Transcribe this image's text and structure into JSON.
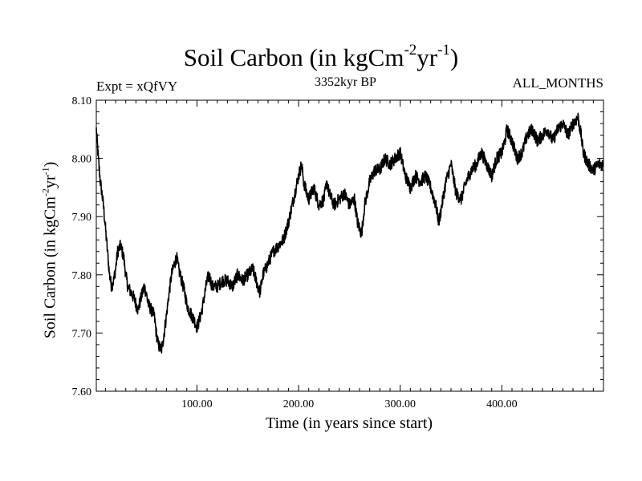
{
  "chart_data": {
    "type": "line",
    "title": {
      "main": "Soil Carbon (in kgCm",
      "sup1": "-2",
      "mid": "yr",
      "sup2": "-1",
      "end": ")"
    },
    "experiment": "Expt = xQfVY",
    "period": "3352kyr BP",
    "months": "ALL_MONTHS",
    "xlabel": "Time (in years since start)",
    "ylabel": {
      "main": "Soil Carbon (in kgCm",
      "sup1": "-2",
      "mid": "yr",
      "sup2": "-1",
      "end": ")"
    },
    "xlim": [
      1,
      500
    ],
    "ylim": [
      7.6,
      8.1
    ],
    "xticks": [
      100,
      200,
      300,
      400
    ],
    "xtick_labels": [
      "100.00",
      "200.00",
      "300.00",
      "400.00"
    ],
    "yticks": [
      7.6,
      7.7,
      7.8,
      7.9,
      8.0,
      8.1
    ],
    "ytick_labels": [
      "7.60",
      "7.70",
      "7.80",
      "7.90",
      "8.00",
      "8.10"
    ],
    "grid": false,
    "series": [
      {
        "name": "Soil Carbon",
        "color": "#000000",
        "x": [
          1,
          3,
          5,
          8,
          10,
          12,
          14,
          16,
          18,
          20,
          22,
          25,
          28,
          30,
          32,
          35,
          38,
          40,
          42,
          45,
          48,
          50,
          52,
          55,
          58,
          60,
          62,
          65,
          67,
          70,
          72,
          75,
          78,
          80,
          82,
          85,
          88,
          90,
          92,
          95,
          98,
          100,
          102,
          105,
          108,
          110,
          112,
          115,
          120,
          125,
          130,
          135,
          140,
          145,
          150,
          155,
          160,
          162,
          165,
          170,
          175,
          180,
          185,
          190,
          195,
          200,
          203,
          205,
          208,
          210,
          215,
          220,
          225,
          228,
          230,
          235,
          240,
          245,
          250,
          255,
          258,
          262,
          265,
          270,
          275,
          280,
          285,
          290,
          295,
          300,
          305,
          310,
          315,
          320,
          325,
          330,
          335,
          338,
          340,
          345,
          350,
          355,
          360,
          365,
          370,
          375,
          380,
          385,
          390,
          395,
          400,
          403,
          405,
          410,
          415,
          420,
          425,
          430,
          435,
          440,
          445,
          450,
          455,
          460,
          465,
          470,
          475,
          478,
          480,
          485,
          490,
          495,
          500
        ],
        "values": [
          8.05,
          8.0,
          7.96,
          7.92,
          7.88,
          7.84,
          7.8,
          7.78,
          7.79,
          7.81,
          7.84,
          7.85,
          7.83,
          7.8,
          7.78,
          7.77,
          7.76,
          7.75,
          7.74,
          7.76,
          7.78,
          7.77,
          7.75,
          7.74,
          7.73,
          7.7,
          7.68,
          7.67,
          7.69,
          7.73,
          7.76,
          7.8,
          7.82,
          7.83,
          7.81,
          7.79,
          7.77,
          7.75,
          7.74,
          7.73,
          7.72,
          7.71,
          7.72,
          7.74,
          7.77,
          7.79,
          7.8,
          7.78,
          7.78,
          7.79,
          7.79,
          7.78,
          7.8,
          7.79,
          7.8,
          7.81,
          7.78,
          7.77,
          7.8,
          7.82,
          7.84,
          7.85,
          7.86,
          7.89,
          7.93,
          7.97,
          7.99,
          7.96,
          7.94,
          7.93,
          7.95,
          7.92,
          7.93,
          7.96,
          7.94,
          7.92,
          7.93,
          7.94,
          7.92,
          7.93,
          7.89,
          7.87,
          7.92,
          7.96,
          7.98,
          7.98,
          8.0,
          7.99,
          8.0,
          8.01,
          7.97,
          7.95,
          7.97,
          7.96,
          7.97,
          7.95,
          7.92,
          7.89,
          7.91,
          7.96,
          7.99,
          7.94,
          7.93,
          7.96,
          7.98,
          7.99,
          8.01,
          7.99,
          7.97,
          8.0,
          8.01,
          8.03,
          8.05,
          8.03,
          8.0,
          8.01,
          8.04,
          8.05,
          8.03,
          8.04,
          8.05,
          8.03,
          8.05,
          8.06,
          8.04,
          8.06,
          8.07,
          8.04,
          8.01,
          7.99,
          7.98,
          7.99,
          7.99
        ]
      }
    ]
  }
}
